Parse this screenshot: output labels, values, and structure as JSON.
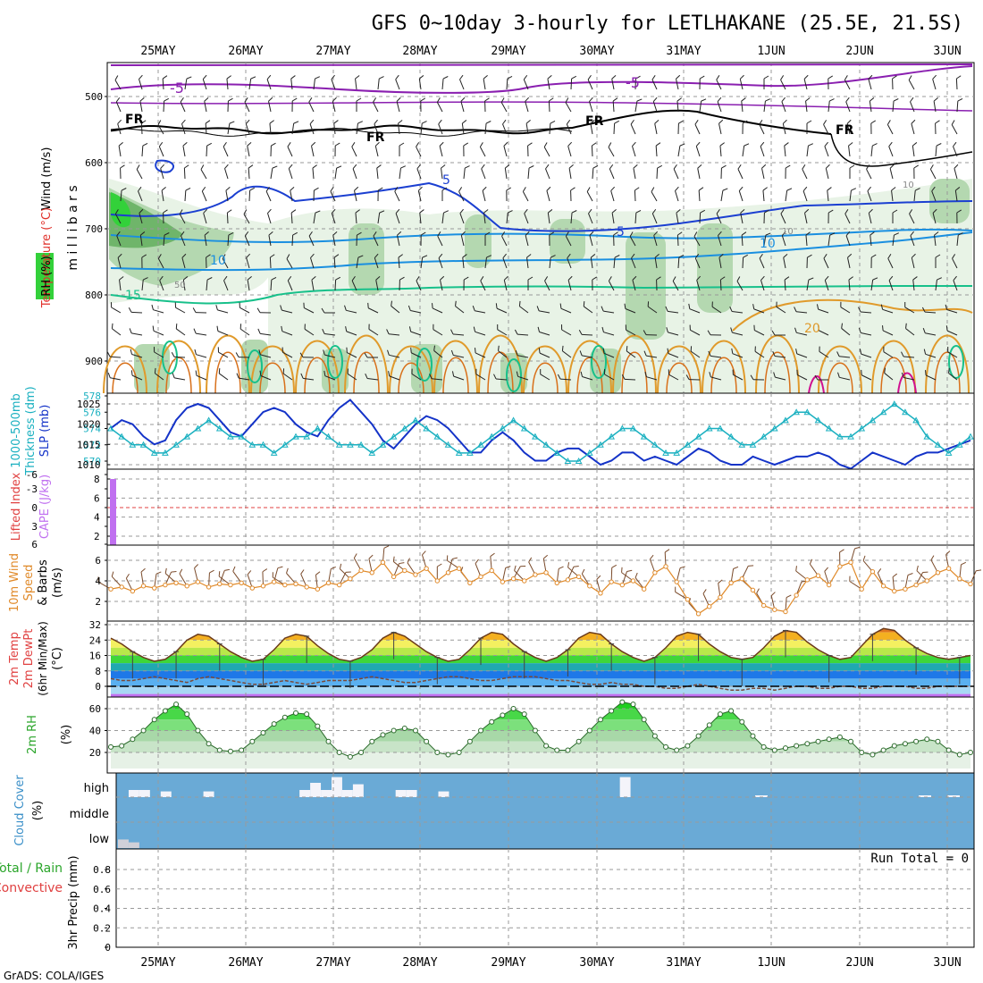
{
  "title": "GFS 0~10day 3-hourly for LETLHAKANE (25.5E, 21.5S)",
  "footer": "GrADS: COLA/IGES",
  "dates": [
    "25MAY",
    "26MAY",
    "27MAY",
    "28MAY",
    "29MAY",
    "30MAY",
    "31MAY",
    "1JUN",
    "2JUN",
    "3JUN"
  ],
  "colors": {
    "purple": "#8a1fb0",
    "black": "#000000",
    "blue": "#1b3fd1",
    "sky": "#1a8fe0",
    "teal": "#17c08a",
    "orange": "#e09a2b",
    "darkorange": "#d8701a",
    "magenta": "#d01090",
    "rh_light": "#e8f3e6",
    "rh_mid": "#b4d8b0",
    "rh_dark": "#6fb56a",
    "rh_green": "#33d13a",
    "slp": "#1433c8",
    "thick": "#1ab0c0",
    "cape": "#c070f0",
    "wind10": "#e08a2a",
    "cloud_bg": "#6aaad6",
    "cloud_white": "#f4f4fa",
    "lifted": "#e04040"
  },
  "panels": {
    "upper": {
      "axis_label": "m i l l i b a r s",
      "side_labels": [
        "Wind (m/s)",
        "Temperature (°C)",
        "RH (%)"
      ],
      "ticks": [
        "500",
        "600",
        "700",
        "800",
        "900"
      ],
      "contour_labels": [
        "-5",
        "-5",
        "FR",
        "FR",
        "FR",
        "FR",
        "5",
        "5",
        "10",
        "10",
        "15",
        "20",
        "10",
        "10",
        "50"
      ]
    },
    "pressure": {
      "side_labels": [
        "1000-500mb",
        "Thickness (dm)",
        "SLP (mb)"
      ],
      "left_ticks": [
        "578",
        "576",
        "574",
        "572",
        "570"
      ],
      "right_ticks": [
        "1025",
        "1020",
        "1015",
        "1010"
      ]
    },
    "stability": {
      "side_labels": [
        "Lifted Index",
        "CAPE (J/kg)"
      ],
      "left_ticks": [
        "-6",
        "-3",
        "0",
        "3",
        "6"
      ],
      "right_ticks": [
        "8",
        "6",
        "4",
        "2"
      ]
    },
    "wind10": {
      "side_labels": [
        "10m Wind",
        "Speed",
        "& Barbs",
        "(m/s)"
      ],
      "ticks": [
        "6",
        "4",
        "2"
      ]
    },
    "temp2m": {
      "side_labels": [
        "2m Temp",
        "2m DewPt",
        "(6hr Min/Max)",
        "(°C)"
      ],
      "ticks": [
        "32",
        "24",
        "16",
        "8",
        "0"
      ]
    },
    "rh2m": {
      "side_labels": [
        "2m RH",
        "(%)"
      ],
      "ticks": [
        "60",
        "40",
        "20"
      ]
    },
    "cloud": {
      "side_labels": [
        "Cloud Cover",
        "(%)"
      ],
      "levels": [
        "high",
        "middle",
        "low"
      ]
    },
    "precip": {
      "side_labels": [
        "Total / Rain",
        "Convective",
        "3hr Precip (mm)"
      ],
      "ticks": [
        "0.8",
        "0.6",
        "0.4",
        "0.2",
        "0"
      ],
      "run_total": "Run Total = 0"
    }
  },
  "chart_data": [
    {
      "type": "line",
      "name": "pressure",
      "series": [
        {
          "name": "SLP (mb)",
          "axis": "right",
          "values": [
            1019,
            1021,
            1020,
            1017,
            1015,
            1016,
            1021,
            1024,
            1025,
            1024,
            1021,
            1018,
            1017,
            1020,
            1023,
            1024,
            1023,
            1020,
            1018,
            1017,
            1021,
            1024,
            1026,
            1023,
            1020,
            1016,
            1014,
            1017,
            1020,
            1022,
            1021,
            1019,
            1016,
            1013,
            1013,
            1016,
            1018,
            1016,
            1013,
            1011,
            1011,
            1013,
            1014,
            1014,
            1012,
            1010,
            1011,
            1013,
            1013,
            1011,
            1012,
            1011,
            1010,
            1012,
            1014,
            1013,
            1011,
            1010,
            1010,
            1012,
            1011,
            1010,
            1011,
            1012,
            1012,
            1013,
            1012,
            1010,
            1009,
            1011,
            1013,
            1012,
            1011,
            1010,
            1012,
            1013,
            1013,
            1014,
            1015,
            1016
          ]
        },
        {
          "name": "1000-500mb Thickness (dm)",
          "axis": "left",
          "values": [
            574,
            573,
            572,
            572,
            571,
            571,
            572,
            573,
            574,
            575,
            574,
            573,
            573,
            572,
            572,
            571,
            572,
            573,
            573,
            574,
            573,
            572,
            572,
            572,
            571,
            572,
            573,
            574,
            575,
            574,
            573,
            572,
            571,
            571,
            572,
            573,
            574,
            575,
            574,
            573,
            572,
            571,
            570,
            570,
            571,
            572,
            573,
            574,
            574,
            573,
            572,
            571,
            571,
            572,
            573,
            574,
            574,
            573,
            572,
            572,
            573,
            574,
            575,
            576,
            576,
            575,
            574,
            573,
            573,
            574,
            575,
            576,
            577,
            576,
            575,
            573,
            572,
            571,
            572,
            573
          ]
        }
      ]
    },
    {
      "type": "bar",
      "name": "cape",
      "series": [
        {
          "name": "CAPE (J/kg)",
          "values": [
            8
          ]
        }
      ]
    },
    {
      "type": "line",
      "name": "wind10",
      "series": [
        {
          "name": "10m Wind Speed (m/s)",
          "values": [
            3.2,
            3.4,
            3.0,
            3.5,
            3.3,
            3.6,
            3.8,
            3.5,
            3.9,
            3.4,
            3.7,
            3.6,
            3.8,
            3.3,
            3.5,
            3.9,
            3.6,
            3.7,
            3.4,
            3.2,
            3.8,
            3.6,
            4.2,
            5.0,
            4.8,
            5.8,
            4.4,
            5.0,
            4.6,
            5.2,
            4.0,
            4.8,
            5.2,
            3.8,
            4.4,
            5.0,
            3.9,
            4.2,
            4.0,
            4.6,
            4.8,
            3.8,
            4.1,
            4.4,
            3.5,
            2.8,
            3.9,
            3.6,
            4.0,
            3.2,
            4.8,
            5.4,
            3.9,
            2.2,
            0.8,
            1.5,
            2.4,
            3.8,
            4.2,
            3.1,
            1.6,
            1.2,
            1.0,
            2.6,
            4.1,
            4.5,
            3.6,
            5.4,
            5.8,
            3.2,
            4.9,
            3.5,
            3.0,
            3.2,
            3.6,
            4.0,
            4.8,
            5.2,
            4.2,
            3.7
          ]
        }
      ]
    },
    {
      "type": "area",
      "name": "temp2m",
      "series": [
        {
          "name": "2m Temp",
          "values": [
            25,
            22,
            18,
            15,
            13,
            14,
            18,
            24,
            27,
            26,
            22,
            18,
            15,
            13,
            14,
            19,
            25,
            27,
            26,
            21,
            17,
            14,
            13,
            15,
            19,
            25,
            28,
            26,
            22,
            18,
            15,
            13,
            14,
            19,
            25,
            28,
            27,
            22,
            18,
            15,
            13,
            15,
            19,
            25,
            28,
            27,
            22,
            18,
            15,
            13,
            15,
            20,
            26,
            28,
            27,
            22,
            18,
            15,
            14,
            15,
            20,
            26,
            29,
            28,
            23,
            19,
            16,
            14,
            15,
            21,
            27,
            30,
            29,
            24,
            20,
            17,
            15,
            14,
            15,
            16
          ]
        },
        {
          "name": "2m DewPt",
          "values": [
            4,
            3,
            3,
            4,
            5,
            4,
            3,
            2,
            4,
            5,
            4,
            3,
            2,
            1,
            1,
            2,
            3,
            2,
            1,
            2,
            3,
            3,
            3,
            4,
            5,
            4,
            3,
            2,
            2,
            3,
            4,
            5,
            5,
            4,
            3,
            3,
            4,
            5,
            5,
            5,
            4,
            3,
            3,
            2,
            1,
            1,
            2,
            1,
            1,
            0,
            0,
            -1,
            -1,
            0,
            1,
            0,
            -1,
            -2,
            -2,
            -1,
            -1,
            -2,
            -1,
            0,
            0,
            -1,
            -1,
            0,
            0,
            -1,
            -1,
            0,
            0,
            0,
            -1,
            -1,
            0,
            0,
            0,
            0
          ]
        }
      ]
    },
    {
      "type": "area",
      "name": "rh2m",
      "series": [
        {
          "name": "2m RH (%)",
          "values": [
            25,
            26,
            32,
            40,
            50,
            58,
            64,
            55,
            40,
            28,
            22,
            21,
            22,
            30,
            38,
            46,
            52,
            56,
            55,
            44,
            30,
            20,
            16,
            20,
            30,
            36,
            40,
            42,
            40,
            30,
            20,
            18,
            20,
            30,
            40,
            48,
            54,
            60,
            55,
            40,
            26,
            22,
            22,
            30,
            40,
            50,
            58,
            66,
            64,
            50,
            35,
            25,
            22,
            26,
            35,
            45,
            55,
            58,
            48,
            35,
            25,
            22,
            24,
            26,
            28,
            30,
            32,
            34,
            30,
            20,
            18,
            22,
            26,
            28,
            30,
            32,
            30,
            22,
            18,
            20
          ]
        }
      ]
    },
    {
      "type": "heatmap",
      "name": "cloud",
      "rows": [
        "high",
        "middle",
        "low"
      ],
      "series": [
        {
          "name": "high",
          "values": [
            0,
            10,
            10,
            0,
            8,
            0,
            0,
            0,
            8,
            0,
            0,
            0,
            0,
            0,
            0,
            0,
            0,
            10,
            20,
            10,
            28,
            10,
            18,
            0,
            0,
            0,
            10,
            10,
            0,
            0,
            8,
            0,
            0,
            0,
            0,
            0,
            0,
            0,
            0,
            0,
            0,
            0,
            0,
            0,
            0,
            0,
            0,
            28,
            0,
            0,
            0,
            0,
            0,
            0,
            0,
            0,
            0,
            0,
            0,
            0,
            0,
            0,
            0,
            0,
            0,
            0,
            0,
            0,
            0,
            0,
            0,
            0,
            0,
            0,
            0,
            0,
            0,
            0,
            0,
            0
          ]
        },
        {
          "name": "low",
          "values": [
            12,
            8,
            0,
            0,
            0,
            0,
            0,
            0,
            0,
            0,
            0,
            0,
            0,
            0,
            0,
            0,
            0,
            0,
            0,
            0,
            0,
            0,
            0,
            0,
            0,
            0,
            0,
            0,
            0,
            0,
            0,
            0,
            0,
            0,
            0,
            0,
            0,
            0,
            0,
            0,
            0,
            0,
            0,
            0,
            0,
            0,
            0,
            0,
            0,
            0,
            0,
            0,
            0,
            0,
            0,
            0,
            0,
            0,
            0,
            0,
            0,
            0,
            0,
            0,
            0,
            0,
            0,
            0,
            0,
            0,
            0,
            0,
            0,
            0,
            0,
            0,
            0,
            0,
            0,
            0
          ]
        }
      ]
    },
    {
      "type": "bar",
      "name": "precip",
      "ylim": [
        0,
        1
      ],
      "series": [
        {
          "name": "3hr Precip (mm)",
          "values": []
        }
      ]
    }
  ]
}
